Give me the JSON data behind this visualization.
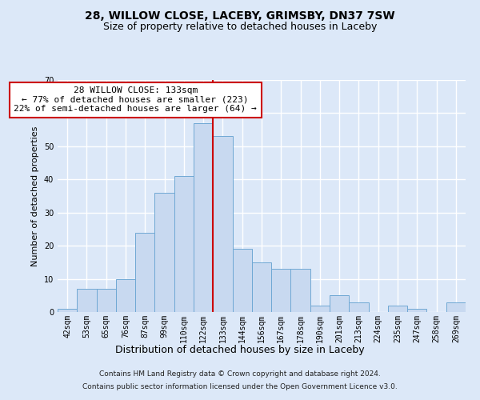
{
  "title1": "28, WILLOW CLOSE, LACEBY, GRIMSBY, DN37 7SW",
  "title2": "Size of property relative to detached houses in Laceby",
  "xlabel": "Distribution of detached houses by size in Laceby",
  "ylabel": "Number of detached properties",
  "footnote1": "Contains HM Land Registry data © Crown copyright and database right 2024.",
  "footnote2": "Contains public sector information licensed under the Open Government Licence v3.0.",
  "bins": [
    "42sqm",
    "53sqm",
    "65sqm",
    "76sqm",
    "87sqm",
    "99sqm",
    "110sqm",
    "122sqm",
    "133sqm",
    "144sqm",
    "156sqm",
    "167sqm",
    "178sqm",
    "190sqm",
    "201sqm",
    "213sqm",
    "224sqm",
    "235sqm",
    "247sqm",
    "258sqm",
    "269sqm"
  ],
  "values": [
    1,
    7,
    7,
    10,
    24,
    36,
    41,
    57,
    53,
    19,
    15,
    13,
    13,
    2,
    5,
    3,
    0,
    2,
    1,
    0,
    3
  ],
  "bar_color": "#c8d9f0",
  "bar_edge_color": "#6fa8d4",
  "vline_index": 8,
  "vline_color": "#cc0000",
  "annotation_text": "28 WILLOW CLOSE: 133sqm\n← 77% of detached houses are smaller (223)\n22% of semi-detached houses are larger (64) →",
  "ylim": [
    0,
    70
  ],
  "yticks": [
    0,
    10,
    20,
    30,
    40,
    50,
    60,
    70
  ],
  "background_color": "#dce8f8",
  "grid_color": "#ffffff",
  "title_fontsize": 10,
  "subtitle_fontsize": 9,
  "tick_fontsize": 7,
  "ylabel_fontsize": 8,
  "xlabel_fontsize": 9,
  "footnote_fontsize": 6.5,
  "ann_fontsize": 8
}
